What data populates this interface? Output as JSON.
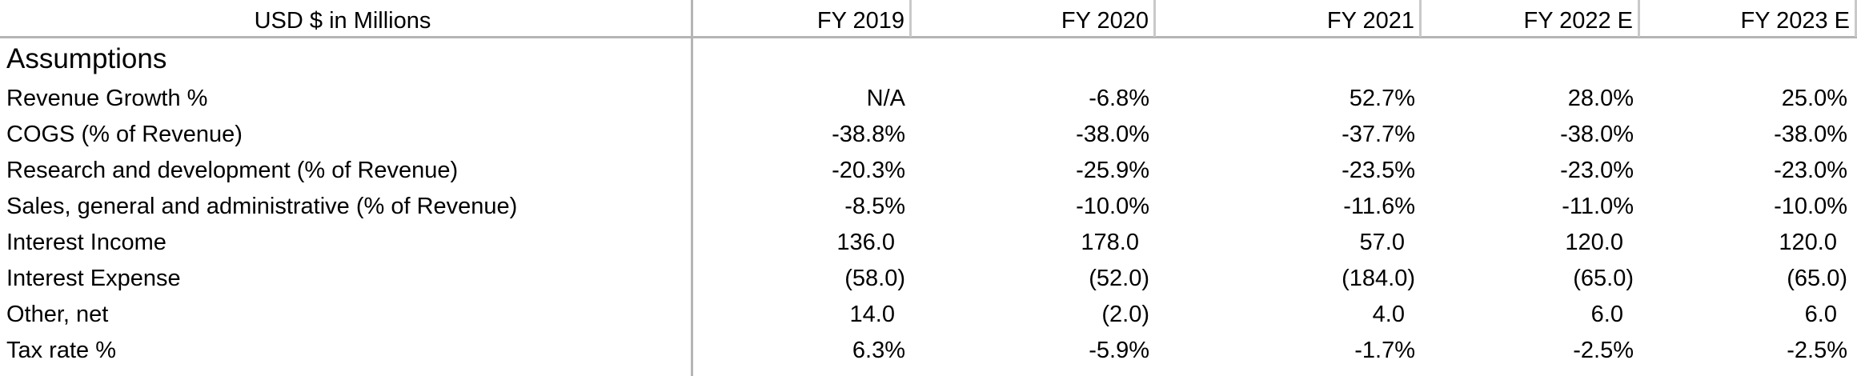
{
  "header": {
    "units": "USD $ in Millions",
    "columns": [
      "FY 2019",
      "FY 2020",
      "FY 2021",
      "FY 2022 E",
      "FY 2023 E"
    ]
  },
  "section_title": "Assumptions",
  "rows": [
    {
      "label": "Revenue Growth %",
      "values": [
        "N/A",
        "-6.8%",
        "52.7%",
        "28.0%",
        "25.0%"
      ]
    },
    {
      "label": "COGS (% of Revenue)",
      "values": [
        "-38.8%",
        "-38.0%",
        "-37.7%",
        "-38.0%",
        "-38.0%"
      ]
    },
    {
      "label": "Research and development (% of Revenue)",
      "values": [
        "-20.3%",
        "-25.9%",
        "-23.5%",
        "-23.0%",
        "-23.0%"
      ]
    },
    {
      "label": "Sales, general and administrative (% of Revenue)",
      "values": [
        "-8.5%",
        "-10.0%",
        "-11.6%",
        "-11.0%",
        "-10.0%"
      ]
    },
    {
      "label": "Interest Income",
      "values": [
        "136.0",
        "178.0",
        "57.0",
        "120.0",
        "120.0"
      ]
    },
    {
      "label": "Interest Expense",
      "values": [
        "(58.0)",
        "(52.0)",
        "(184.0)",
        "(65.0)",
        "(65.0)"
      ]
    },
    {
      "label": "Other, net",
      "values": [
        "14.0",
        "(2.0)",
        "4.0",
        "6.0",
        "6.0"
      ]
    },
    {
      "label": "Tax rate %",
      "values": [
        "6.3%",
        "-5.9%",
        "-1.7%",
        "-2.5%",
        "-2.5%"
      ]
    }
  ]
}
